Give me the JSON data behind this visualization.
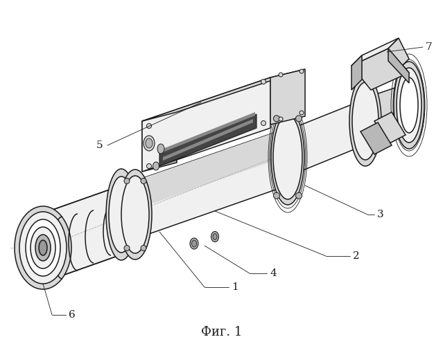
{
  "background_color": "#ffffff",
  "line_color": "#1a1a1a",
  "fig_caption": "Фиг. 1",
  "title_fontsize": 13,
  "label_fontsize": 11,
  "lw_main": 1.1,
  "lw_thin": 0.6,
  "lw_annotation": 0.6,
  "gray_light": "#f0f0f0",
  "gray_mid": "#d8d8d8",
  "gray_dark": "#b8b8b8",
  "gray_darker": "#999999",
  "white": "#ffffff"
}
